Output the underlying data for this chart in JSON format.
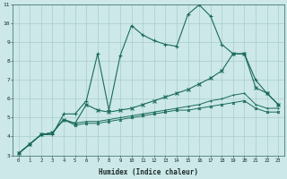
{
  "xlabel": "Humidex (Indice chaleur)",
  "bg_color": "#cce8e8",
  "grid_color": "#aacccc",
  "line_color": "#1a6b5a",
  "xlim": [
    -0.5,
    23.5
  ],
  "ylim": [
    3,
    11
  ],
  "xticks": [
    0,
    1,
    2,
    3,
    4,
    5,
    6,
    7,
    8,
    9,
    10,
    11,
    12,
    13,
    14,
    15,
    16,
    17,
    18,
    19,
    20,
    21,
    22,
    23
  ],
  "yticks": [
    3,
    4,
    5,
    6,
    7,
    8,
    9,
    10,
    11
  ],
  "series": [
    [
      3.1,
      3.6,
      4.1,
      4.1,
      5.2,
      5.2,
      5.9,
      8.4,
      5.4,
      8.3,
      9.9,
      9.4,
      9.1,
      8.9,
      8.8,
      10.5,
      11.0,
      10.4,
      8.9,
      8.4,
      8.4,
      7.0,
      6.3,
      5.7
    ],
    [
      3.1,
      3.6,
      4.1,
      4.2,
      4.9,
      4.7,
      5.7,
      5.4,
      5.3,
      5.4,
      5.5,
      5.7,
      5.9,
      6.1,
      6.3,
      6.5,
      6.8,
      7.1,
      7.5,
      8.4,
      8.4,
      6.6,
      6.3,
      5.7
    ],
    [
      3.1,
      3.6,
      4.1,
      4.2,
      4.9,
      4.7,
      4.8,
      4.8,
      4.9,
      5.0,
      5.1,
      5.2,
      5.3,
      5.4,
      5.5,
      5.6,
      5.7,
      5.9,
      6.0,
      6.2,
      6.3,
      5.7,
      5.5,
      5.5
    ],
    [
      3.1,
      3.6,
      4.1,
      4.2,
      4.9,
      4.6,
      4.7,
      4.7,
      4.8,
      4.9,
      5.0,
      5.1,
      5.2,
      5.3,
      5.4,
      5.4,
      5.5,
      5.6,
      5.7,
      5.8,
      5.9,
      5.5,
      5.3,
      5.3
    ]
  ],
  "marker_sizes": [
    3,
    3,
    2,
    2
  ],
  "linewidths": [
    0.8,
    0.8,
    0.7,
    0.7
  ]
}
